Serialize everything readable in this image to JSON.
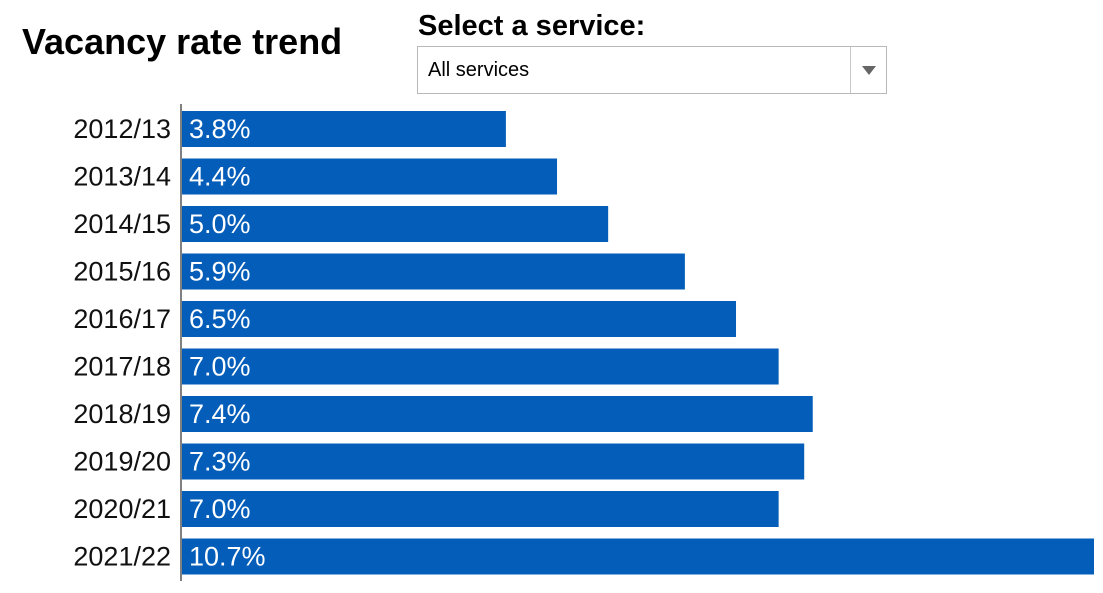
{
  "title": "Vacancy rate trend",
  "service_select": {
    "label": "Select a service:",
    "value": "All services"
  },
  "colors": {
    "bar": "#035db9",
    "bar_label": "#ffffff",
    "axis": "#000000"
  },
  "chart_data": {
    "type": "bar",
    "orientation": "horizontal",
    "categories": [
      "2012/13",
      "2013/14",
      "2014/15",
      "2015/16",
      "2016/17",
      "2017/18",
      "2018/19",
      "2019/20",
      "2020/21",
      "2021/22"
    ],
    "values": [
      3.8,
      4.4,
      5.0,
      5.9,
      6.5,
      7.0,
      7.4,
      7.3,
      7.0,
      10.7
    ],
    "labels": [
      "3.8%",
      "4.4%",
      "5.0%",
      "5.9%",
      "6.5%",
      "7.0%",
      "7.4%",
      "7.3%",
      "7.0%",
      "10.7%"
    ],
    "unit": "%",
    "xlim": [
      0,
      10.7
    ],
    "grid": false,
    "legend": "none"
  }
}
